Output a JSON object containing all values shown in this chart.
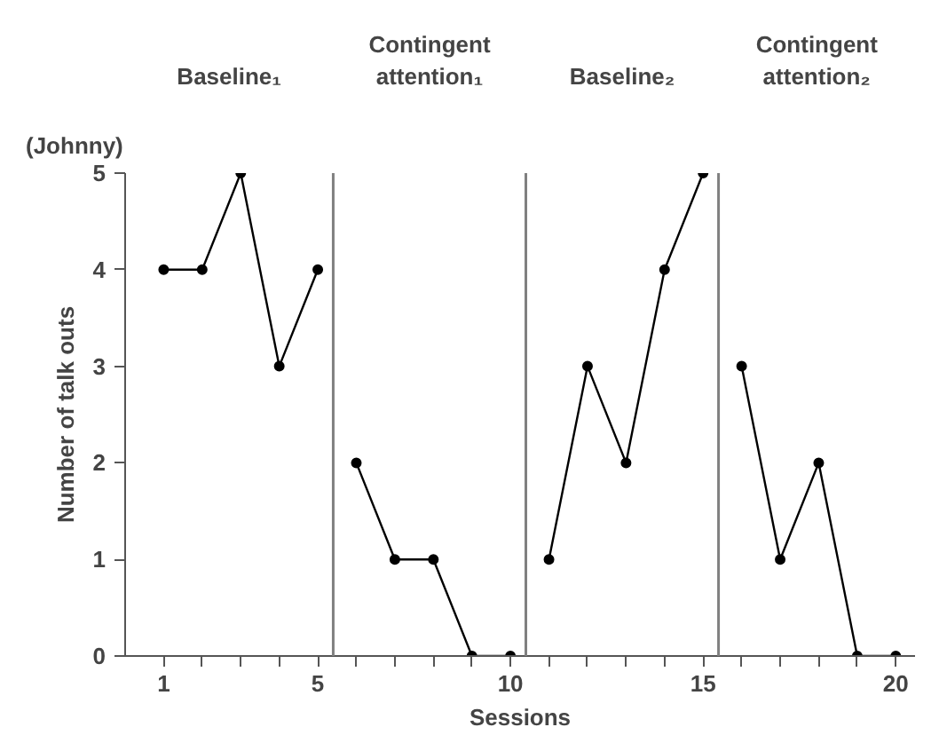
{
  "chart_data": {
    "type": "line",
    "xlabel": "Sessions",
    "ylabel": "Number of talk outs",
    "annotations": [
      "Baseline₁",
      "Contingent attention₁",
      "Baseline₂",
      "Contingent attention₂",
      "(Johnny)"
    ],
    "series": [
      {
        "color": "#000000",
        "x": [
          1,
          2,
          3,
          4,
          5
        ],
        "values": [
          4,
          4,
          5,
          3,
          4
        ]
      },
      {
        "color": "#000000",
        "x": [
          6,
          7,
          8,
          9,
          10
        ],
        "values": [
          2,
          1,
          1,
          0,
          0
        ]
      },
      {
        "color": "#000000",
        "x": [
          11,
          12,
          13,
          14,
          15
        ],
        "values": [
          1,
          3,
          2,
          4,
          5
        ]
      },
      {
        "color": "#000000",
        "x": [
          16,
          17,
          18,
          19,
          20
        ],
        "values": [
          3,
          1,
          2,
          0,
          0
        ]
      }
    ],
    "ref_lines": [
      {
        "axis": "x",
        "value": 5.4,
        "color": "#808080"
      },
      {
        "axis": "x",
        "value": 10.4,
        "color": "#808080"
      },
      {
        "axis": "x",
        "value": 15.4,
        "color": "#808080"
      }
    ],
    "xlim": [
      0,
      20.5
    ],
    "ylim": [
      0,
      5
    ],
    "xticks": [
      1,
      {
        "value": 2,
        "label": null
      },
      {
        "value": 3,
        "label": null
      },
      {
        "value": 4,
        "label": null
      },
      5,
      {
        "value": 6,
        "label": null
      },
      {
        "value": 7,
        "label": null
      },
      {
        "value": 8,
        "label": null
      },
      {
        "value": 9,
        "label": null
      },
      10,
      {
        "value": 11,
        "label": null
      },
      {
        "value": 12,
        "label": null
      },
      {
        "value": 13,
        "label": null
      },
      {
        "value": 14,
        "label": null
      },
      15,
      {
        "value": 16,
        "label": null
      },
      {
        "value": 17,
        "label": null
      },
      {
        "value": 18,
        "label": null
      },
      {
        "value": 19,
        "label": null
      },
      20
    ],
    "yticks": [
      0,
      1,
      2,
      3,
      4,
      5
    ],
    "grid": false,
    "marker": "circle",
    "line_style": "solid"
  }
}
